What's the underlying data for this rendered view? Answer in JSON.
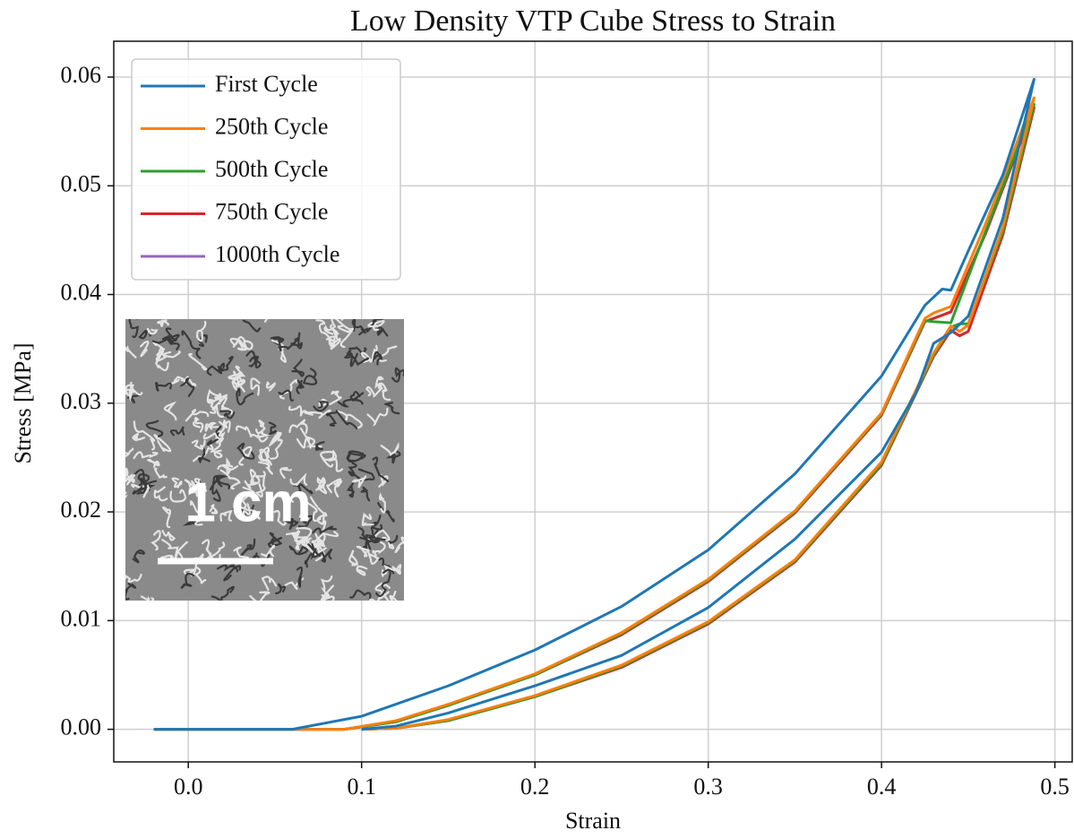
{
  "chart_data": {
    "type": "line",
    "title": "Low Density VTP Cube Stress to Strain",
    "x_label": "Strain",
    "y_label": "Stress [MPa]",
    "inset_label": "1 cm",
    "xlim": [
      -0.043,
      0.51
    ],
    "ylim": [
      -0.003,
      0.0633
    ],
    "xticks": [
      {
        "value": 0,
        "label": "0.0"
      },
      0.1,
      0.2,
      0.3,
      0.4,
      0.5
    ],
    "yticks": [
      {
        "value": 0,
        "label": "0.00"
      },
      0.01,
      0.02,
      0.03,
      0.04,
      0.05,
      0.06
    ],
    "grid": true,
    "legend": "upper left",
    "series": [
      {
        "name": "First Cycle",
        "color": "#1f77b4",
        "x": [
          -0.02,
          0.06,
          0.1,
          0.15,
          0.2,
          0.25,
          0.3,
          0.35,
          0.4,
          0.425,
          0.435,
          0.44,
          0.45,
          0.47,
          0.488,
          0.47,
          0.45,
          0.44,
          0.43,
          0.42,
          0.4,
          0.35,
          0.3,
          0.25,
          0.2,
          0.15,
          0.12,
          0.1
        ],
        "values": [
          0,
          0,
          0.0012,
          0.004,
          0.0073,
          0.0113,
          0.0165,
          0.0235,
          0.0325,
          0.039,
          0.0405,
          0.0404,
          0.044,
          0.051,
          0.0598,
          0.047,
          0.038,
          0.0365,
          0.0355,
          0.031,
          0.0255,
          0.0175,
          0.0112,
          0.0068,
          0.004,
          0.0015,
          0.0003,
          0
        ]
      },
      {
        "name": "250th Cycle",
        "color": "#ff7f0e",
        "x": [
          -0.02,
          0.09,
          0.12,
          0.15,
          0.2,
          0.25,
          0.3,
          0.35,
          0.4,
          0.425,
          0.43,
          0.44,
          0.46,
          0.488,
          0.47,
          0.45,
          0.445,
          0.44,
          0.43,
          0.4,
          0.35,
          0.3,
          0.25,
          0.2,
          0.15,
          0.12,
          0.1
        ],
        "values": [
          0,
          0,
          0.0008,
          0.0023,
          0.0051,
          0.0089,
          0.0138,
          0.0201,
          0.0291,
          0.0378,
          0.0383,
          0.0389,
          0.0465,
          0.0581,
          0.0462,
          0.0372,
          0.0366,
          0.0371,
          0.0346,
          0.0246,
          0.0156,
          0.0099,
          0.0059,
          0.0031,
          0.0009,
          0.0001,
          0
        ]
      },
      {
        "name": "500th Cycle",
        "color": "#2ca02c",
        "x": [
          -0.02,
          0.09,
          0.12,
          0.15,
          0.2,
          0.25,
          0.3,
          0.35,
          0.4,
          0.425,
          0.43,
          0.44,
          0.46,
          0.488,
          0.47,
          0.45,
          0.445,
          0.44,
          0.43,
          0.4,
          0.35,
          0.3,
          0.25,
          0.2,
          0.15,
          0.12,
          0.1
        ],
        "values": [
          0,
          0,
          0.0007,
          0.0022,
          0.005,
          0.0088,
          0.0137,
          0.02,
          0.029,
          0.0376,
          0.0375,
          0.0374,
          0.0458,
          0.0575,
          0.0458,
          0.0373,
          0.0373,
          0.037,
          0.0344,
          0.0244,
          0.0155,
          0.0098,
          0.0058,
          0.003,
          0.0008,
          0.0001,
          0
        ]
      },
      {
        "name": "750th Cycle",
        "color": "#d62728",
        "x": [
          -0.02,
          0.09,
          0.12,
          0.15,
          0.2,
          0.25,
          0.3,
          0.35,
          0.4,
          0.425,
          0.43,
          0.44,
          0.46,
          0.488,
          0.47,
          0.45,
          0.445,
          0.44,
          0.43,
          0.4,
          0.35,
          0.3,
          0.25,
          0.2,
          0.15,
          0.12,
          0.1
        ],
        "values": [
          0,
          0,
          0.0007,
          0.0022,
          0.005,
          0.0087,
          0.0136,
          0.0199,
          0.0289,
          0.0375,
          0.0378,
          0.0384,
          0.0456,
          0.0572,
          0.0455,
          0.0366,
          0.0362,
          0.0367,
          0.0343,
          0.0243,
          0.0154,
          0.0097,
          0.0057,
          0.003,
          0.0008,
          0.0001,
          0
        ]
      },
      {
        "name": "1000th Cycle",
        "color": "#9467bd",
        "x": [
          -0.02,
          0.09,
          0.12,
          0.15,
          0.2,
          0.25,
          0.3,
          0.35,
          0.4,
          0.425,
          0.43,
          0.44,
          0.46,
          0.488,
          0.47,
          0.45,
          0.445,
          0.44,
          0.43,
          0.4,
          0.35,
          0.3,
          0.25,
          0.2,
          0.15,
          0.12,
          0.1
        ],
        "values": [
          0,
          0,
          0.0007,
          0.0022,
          0.005,
          0.0087,
          0.0136,
          0.0199,
          0.0289,
          0.0375,
          0.0378,
          0.0384,
          0.0456,
          0.0572,
          0.0455,
          0.0366,
          0.0362,
          0.0367,
          0.0343,
          0.0243,
          0.0154,
          0.0097,
          0.0057,
          0.003,
          0.0008,
          0.0001,
          0
        ]
      }
    ]
  }
}
